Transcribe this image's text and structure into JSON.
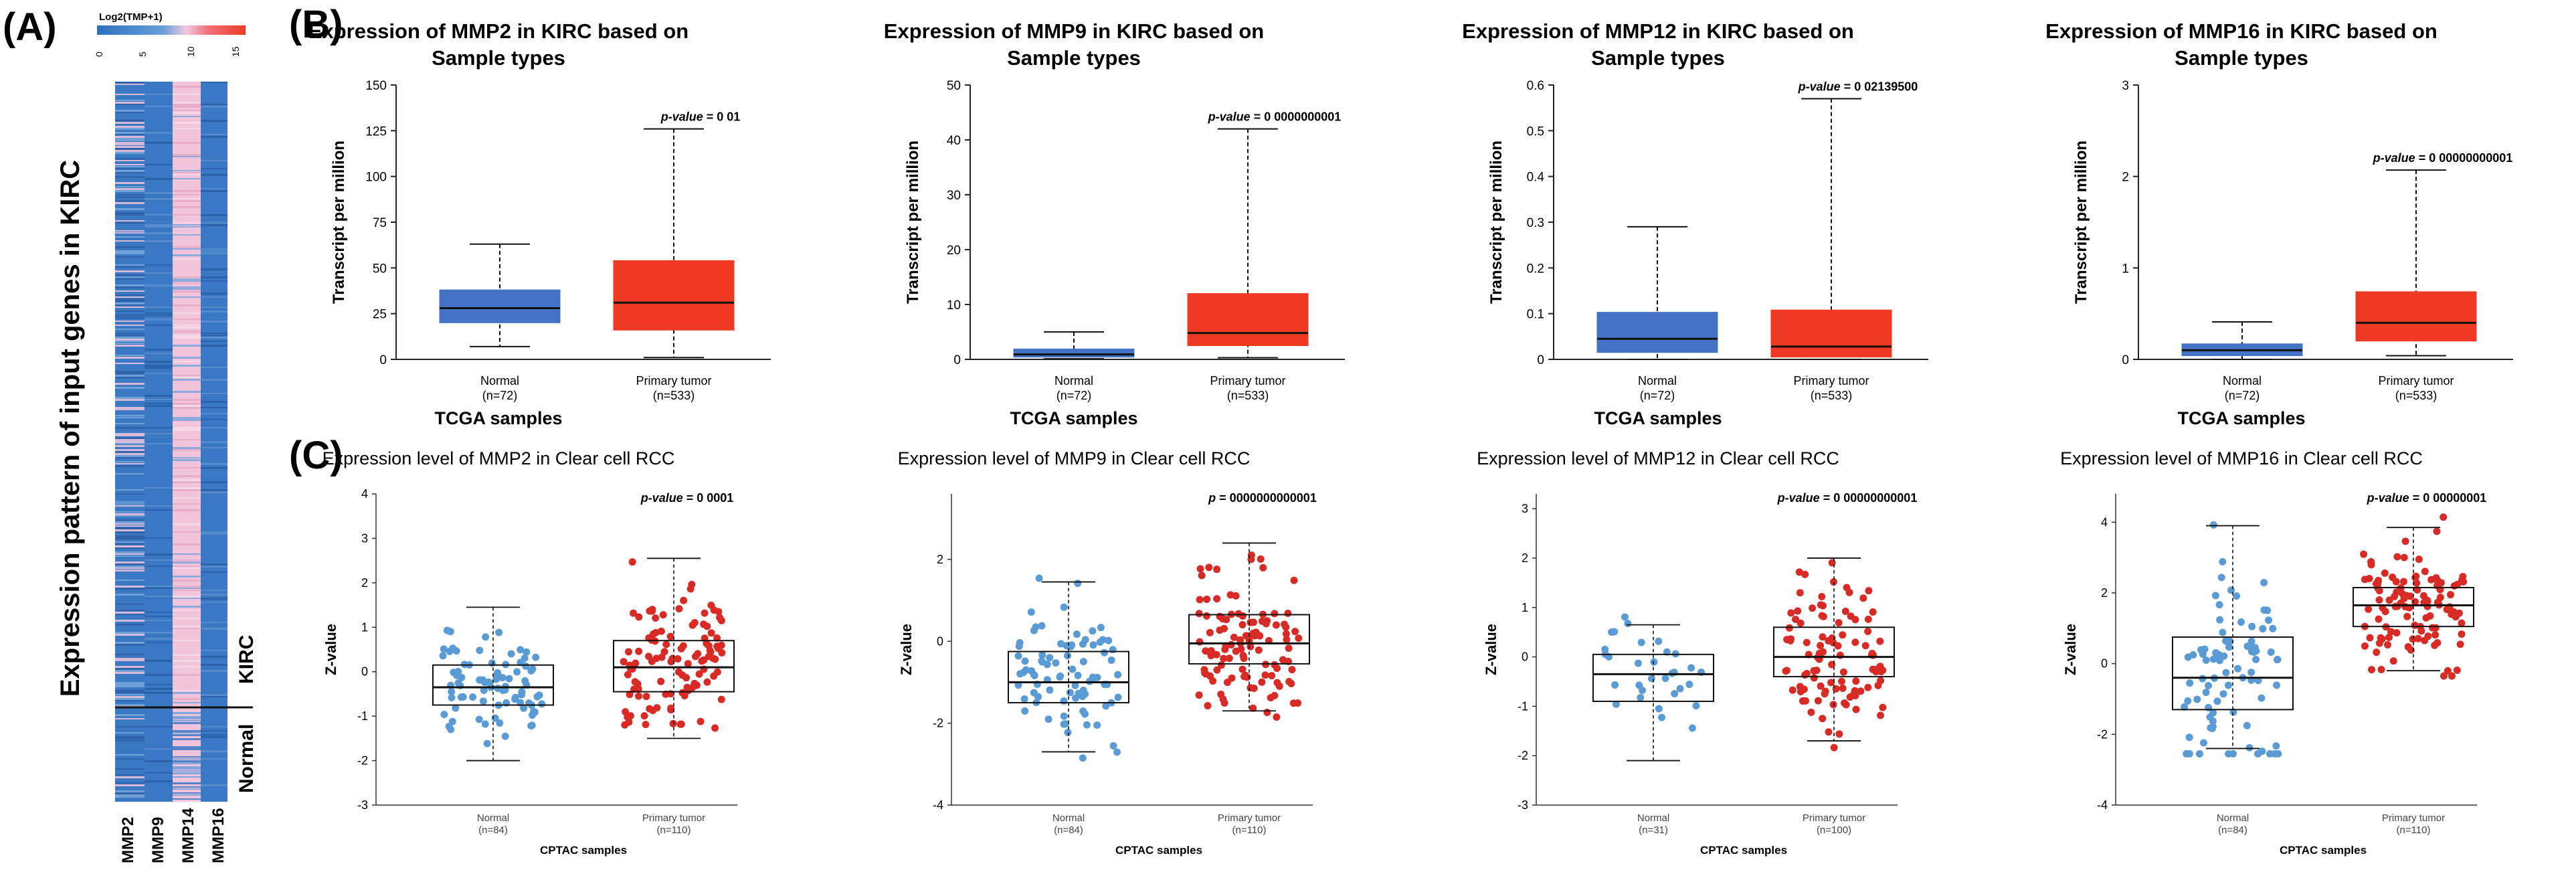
{
  "panel_labels": {
    "a": "(A)",
    "b": "(B)",
    "c": "(C)"
  },
  "heatmap": {
    "legend_title": "Log2(TMP+1)",
    "legend_ticks": [
      "0",
      "5",
      "10",
      "15"
    ],
    "ylabel": "Expression pattern of input genes in KIRC",
    "genes": [
      "MMP2",
      "MMP9",
      "MMP14",
      "MMP16"
    ],
    "groups": [
      "KIRC",
      "Normal"
    ]
  },
  "colors": {
    "normal": "#4472c4",
    "tumor": "#ee3a24",
    "normal_point": "#5b9bd5",
    "tumor_point": "#d92b25",
    "heat_low": "#3a78c4",
    "heat_mid": "#f2c4dc",
    "heat_high": "#ee3a24"
  },
  "chart_data": [
    {
      "type": "box",
      "panel": "B",
      "title_line1": "Expression of MMP2 in KIRC based on",
      "title_line2": "Sample types",
      "ylabel": "Transcript per million",
      "xlabel": "TCGA samples",
      "ylim": [
        0,
        150
      ],
      "yticks": [
        "0",
        "25",
        "50",
        "75",
        "100",
        "125",
        "150"
      ],
      "pvalue_label": "p-value",
      "pvalue_text": " = 0 01",
      "categories": [
        "Normal",
        "Primary tumor"
      ],
      "counts": [
        "(n=72)",
        "(n=533)"
      ],
      "boxes": [
        {
          "min": 7,
          "q1": 20,
          "median": 28,
          "q3": 38,
          "max": 63
        },
        {
          "min": 1,
          "q1": 16,
          "median": 31,
          "q3": 54,
          "max": 126
        }
      ]
    },
    {
      "type": "box",
      "panel": "B",
      "title_line1": "Expression of MMP9 in KIRC based on",
      "title_line2": "Sample types",
      "ylabel": "Transcript per million",
      "xlabel": "TCGA samples",
      "ylim": [
        0,
        50
      ],
      "yticks": [
        "0",
        "10",
        "20",
        "30",
        "40",
        "50"
      ],
      "pvalue_label": "p-value",
      "pvalue_text": " = 0 0000000001",
      "categories": [
        "Normal",
        "Primary tumor"
      ],
      "counts": [
        "(n=72)",
        "(n=533)"
      ],
      "boxes": [
        {
          "min": 0.1,
          "q1": 0.4,
          "median": 0.9,
          "q3": 1.9,
          "max": 5
        },
        {
          "min": 0.3,
          "q1": 2.5,
          "median": 4.8,
          "q3": 12,
          "max": 42
        }
      ]
    },
    {
      "type": "box",
      "panel": "B",
      "title_line1": "Expression of MMP12 in KIRC based on",
      "title_line2": "Sample types",
      "ylabel": "Transcript per million",
      "xlabel": "TCGA samples",
      "ylim": [
        0,
        0.6
      ],
      "yticks": [
        "0",
        "0.1",
        "0.2",
        "0.3",
        "0.4",
        "0.5",
        "0.6"
      ],
      "pvalue_label": "p-value",
      "pvalue_text": " = 0 02139500",
      "categories": [
        "Normal",
        "Primary tumor"
      ],
      "counts": [
        "(n=72)",
        "(n=533)"
      ],
      "boxes": [
        {
          "min": 0,
          "q1": 0.015,
          "median": 0.045,
          "q3": 0.103,
          "max": 0.29
        },
        {
          "min": 0,
          "q1": 0.005,
          "median": 0.028,
          "q3": 0.108,
          "max": 0.57
        }
      ]
    },
    {
      "type": "box",
      "panel": "B",
      "title_line1": "Expression of MMP16 in KIRC based on",
      "title_line2": "Sample types",
      "ylabel": "Transcript per million",
      "xlabel": "TCGA samples",
      "ylim": [
        0,
        3
      ],
      "yticks": [
        "0",
        "1",
        "2",
        "3"
      ],
      "pvalue_label": "p-value",
      "pvalue_text": " = 0 00000000001",
      "categories": [
        "Normal",
        "Primary tumor"
      ],
      "counts": [
        "(n=72)",
        "(n=533)"
      ],
      "boxes": [
        {
          "min": 0,
          "q1": 0.04,
          "median": 0.1,
          "q3": 0.17,
          "max": 0.41
        },
        {
          "min": 0.04,
          "q1": 0.2,
          "median": 0.4,
          "q3": 0.74,
          "max": 2.07
        }
      ]
    },
    {
      "type": "box-scatter",
      "panel": "C",
      "title": "Expression level of MMP2 in Clear cell RCC",
      "ylabel": "Z-value",
      "xlabel": "CPTAC samples",
      "ylim": [
        -3,
        4
      ],
      "yticks": [
        "4",
        "3",
        "2",
        "1",
        "0",
        "-1",
        "-2",
        "-3"
      ],
      "pvalue_label": "p-value",
      "pvalue_text": " = 0 0001",
      "categories": [
        "Normal",
        "Primary tumor"
      ],
      "counts": [
        "(n=84)",
        "(n=110)"
      ],
      "boxes": [
        {
          "min": -2,
          "q1": -0.75,
          "median": -0.35,
          "q3": 0.15,
          "max": 1.45
        },
        {
          "min": -1.5,
          "q1": -0.45,
          "median": 0.1,
          "q3": 0.7,
          "max": 2.55
        }
      ]
    },
    {
      "type": "box-scatter",
      "panel": "C",
      "title": "Expression level of MMP9 in Clear cell RCC",
      "ylabel": "Z-value",
      "xlabel": "CPTAC samples",
      "ylim": [
        -4,
        3.6
      ],
      "yticks": [
        "2",
        "0",
        "-2",
        "-4"
      ],
      "pvalue_label": "p",
      "pvalue_text": " = 0000000000001",
      "categories": [
        "Normal",
        "Primary tumor"
      ],
      "counts": [
        "(n=84)",
        "(n=110)"
      ],
      "boxes": [
        {
          "min": -2.7,
          "q1": -1.5,
          "median": -1.0,
          "q3": -0.25,
          "max": 1.45
        },
        {
          "min": -1.7,
          "q1": -0.55,
          "median": -0.05,
          "q3": 0.65,
          "max": 2.4
        }
      ]
    },
    {
      "type": "box-scatter",
      "panel": "C",
      "title": "Expression level of MMP12 in Clear cell RCC",
      "ylabel": "Z-value",
      "xlabel": "CPTAC samples",
      "ylim": [
        -3,
        3.3
      ],
      "yticks": [
        "3",
        "2",
        "1",
        "0",
        "-1",
        "-2",
        "-3"
      ],
      "pvalue_label": "p-value",
      "pvalue_text": " = 0 00000000001",
      "categories": [
        "Normal",
        "Primary tumor"
      ],
      "counts": [
        "(n=31)",
        "(n=100)"
      ],
      "boxes": [
        {
          "min": -2.1,
          "q1": -0.9,
          "median": -0.35,
          "q3": 0.05,
          "max": 0.65
        },
        {
          "min": -1.7,
          "q1": -0.4,
          "median": 0.0,
          "q3": 0.6,
          "max": 2.0
        }
      ]
    },
    {
      "type": "box-scatter",
      "panel": "C",
      "title": "Expression level of MMP16 in Clear cell RCC",
      "ylabel": "Z-value",
      "xlabel": "CPTAC samples",
      "ylim": [
        -4,
        4.8
      ],
      "yticks": [
        "4",
        "2",
        "0",
        "-2",
        "-4"
      ],
      "pvalue_label": "p-value",
      "pvalue_text": " = 0 00000001",
      "categories": [
        "Normal",
        "Primary tumor"
      ],
      "counts": [
        "(n=84)",
        "(n=110)"
      ],
      "boxes": [
        {
          "min": -2.4,
          "q1": -1.3,
          "median": -0.4,
          "q3": 0.75,
          "max": 3.9
        },
        {
          "min": -0.2,
          "q1": 1.05,
          "median": 1.65,
          "q3": 2.15,
          "max": 3.85
        }
      ]
    }
  ]
}
